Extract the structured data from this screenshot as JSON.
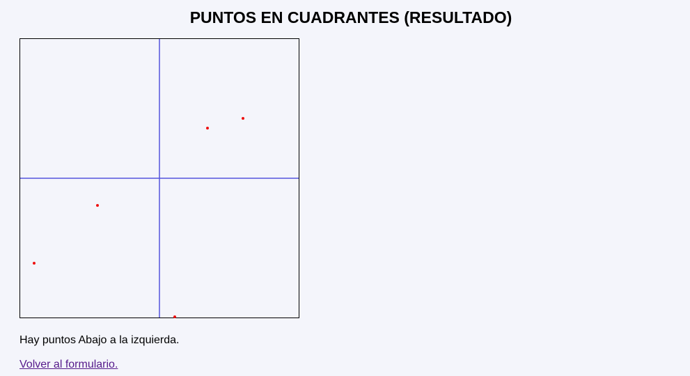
{
  "page": {
    "title": "PUNTOS EN CUADRANTES (RESULTADO)",
    "result_text": "Hay puntos Abajo a la izquierda.",
    "back_link": "Volver al formulario."
  },
  "plot": {
    "xlim": [
      -200,
      200
    ],
    "ylim": [
      -200,
      200
    ],
    "axis_color": "#5555dd",
    "point_color": "#ee1111",
    "border_color": "#000000",
    "points": [
      {
        "x": 69,
        "y": 72
      },
      {
        "x": 120,
        "y": 86
      },
      {
        "x": -89,
        "y": -39
      },
      {
        "x": -180,
        "y": -122
      },
      {
        "x": 22,
        "y": -199
      }
    ]
  }
}
